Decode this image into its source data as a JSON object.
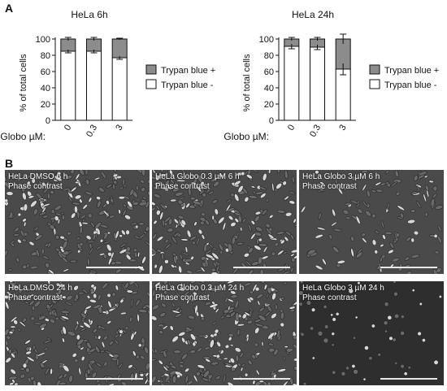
{
  "panels": {
    "a": "A",
    "b": "B"
  },
  "legend": {
    "positive": "Trypan blue +",
    "negative": "Trypan blue -"
  },
  "colors": {
    "positive": "#8c8c8c",
    "negative": "#ffffff",
    "stroke": "#111111"
  },
  "chart_data": [
    {
      "type": "bar",
      "stacked": true,
      "title": "HeLa  6h",
      "ylabel": "% of total cells",
      "xlabel": "Globo µM:",
      "categories": [
        "0",
        "0.3",
        "3"
      ],
      "ylim": [
        0,
        100
      ],
      "yticks": [
        "0",
        "20",
        "40",
        "60",
        "80",
        "100"
      ],
      "series": [
        {
          "name": "Trypan blue -",
          "values": [
            85,
            85,
            77
          ],
          "errors": [
            2,
            2,
            2
          ]
        },
        {
          "name": "Trypan blue +",
          "values": [
            15,
            15,
            23
          ],
          "errors": [
            2,
            2,
            1
          ]
        }
      ],
      "legend_position": "right"
    },
    {
      "type": "bar",
      "stacked": true,
      "title": "HeLa  24h",
      "ylabel": "% of total cells",
      "xlabel": "Globo µM:",
      "categories": [
        "0",
        "0.3",
        "3"
      ],
      "ylim": [
        0,
        100
      ],
      "yticks": [
        "0",
        "20",
        "40",
        "60",
        "80",
        "100"
      ],
      "series": [
        {
          "name": "Trypan blue -",
          "values": [
            91,
            90,
            63
          ],
          "errors": [
            3,
            3,
            7
          ]
        },
        {
          "name": "Trypan blue +",
          "values": [
            9,
            10,
            37
          ],
          "errors": [
            2,
            2,
            6
          ]
        }
      ],
      "legend_position": "right"
    }
  ],
  "micrographs": [
    {
      "line1": "HeLa DMSO 6 h",
      "line2": "Phase contrast",
      "density": "high"
    },
    {
      "line1": "HeLa Globo 0.3 µM 6 h",
      "line2": "Phase contrast",
      "density": "high"
    },
    {
      "line1": "HeLa Globo 3 µM 6 h",
      "line2": "Phase contrast",
      "density": "medium"
    },
    {
      "line1": "HeLa DMSO 24 h",
      "line2": "Phase contrast",
      "density": "high"
    },
    {
      "line1": "HeLa Globo 0.3 µM 24 h",
      "line2": "Phase contrast",
      "density": "high"
    },
    {
      "line1": "HeLa Globo 3 µM 24 h",
      "line2": "Phase contrast",
      "density": "low"
    }
  ]
}
